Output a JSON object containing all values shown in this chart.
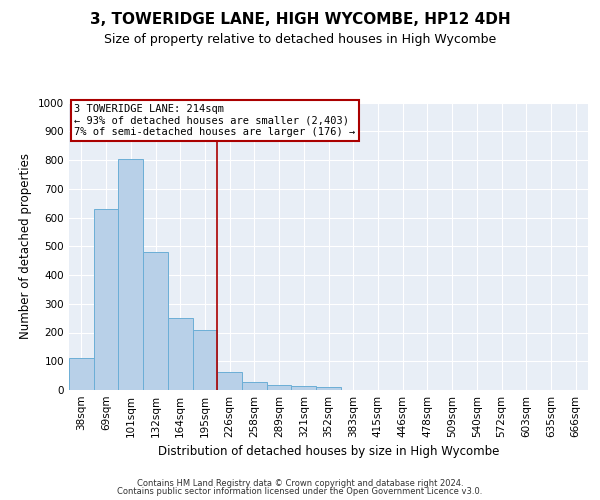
{
  "title1": "3, TOWERIDGE LANE, HIGH WYCOMBE, HP12 4DH",
  "title2": "Size of property relative to detached houses in High Wycombe",
  "xlabel": "Distribution of detached houses by size in High Wycombe",
  "ylabel": "Number of detached properties",
  "bar_labels": [
    "38sqm",
    "69sqm",
    "101sqm",
    "132sqm",
    "164sqm",
    "195sqm",
    "226sqm",
    "258sqm",
    "289sqm",
    "321sqm",
    "352sqm",
    "383sqm",
    "415sqm",
    "446sqm",
    "478sqm",
    "509sqm",
    "540sqm",
    "572sqm",
    "603sqm",
    "635sqm",
    "666sqm"
  ],
  "bar_values": [
    110,
    630,
    805,
    480,
    250,
    207,
    62,
    28,
    18,
    13,
    10,
    0,
    0,
    0,
    0,
    0,
    0,
    0,
    0,
    0,
    0
  ],
  "bar_color": "#b8d0e8",
  "bar_edge_color": "#6baed6",
  "vline_x": 5.5,
  "vline_color": "#aa0000",
  "annotation_text": "3 TOWERIDGE LANE: 214sqm\n← 93% of detached houses are smaller (2,403)\n7% of semi-detached houses are larger (176) →",
  "annotation_box_color": "#aa0000",
  "ylim": [
    0,
    1000
  ],
  "yticks": [
    0,
    100,
    200,
    300,
    400,
    500,
    600,
    700,
    800,
    900,
    1000
  ],
  "footer1": "Contains HM Land Registry data © Crown copyright and database right 2024.",
  "footer2": "Contains public sector information licensed under the Open Government Licence v3.0.",
  "bg_color": "#e8eef6",
  "grid_color": "#ffffff",
  "title1_fontsize": 11,
  "title2_fontsize": 9,
  "axis_label_fontsize": 8.5,
  "tick_fontsize": 7.5,
  "footer_fontsize": 6
}
